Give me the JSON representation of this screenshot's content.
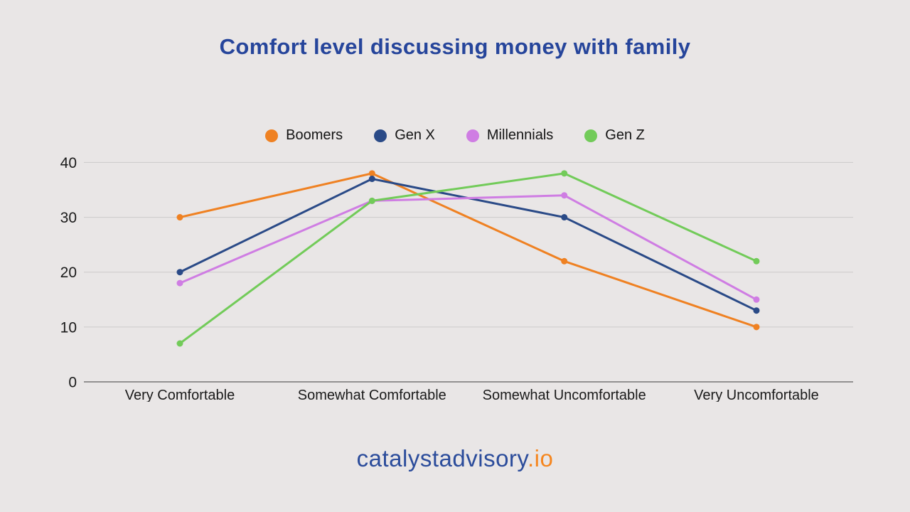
{
  "title": "Comfort level discussing money with family",
  "footer": {
    "brand": "catalystadvisory",
    "tld": ".io"
  },
  "colors": {
    "background": "#E9E6E6",
    "title": "#26459B",
    "gridline": "#CFCDCD",
    "axis_line": "#757575",
    "tick_label": "#1A1A1A",
    "category_label": "#1A1A1A",
    "legend_label": "#141414",
    "brand_blue": "#2B4C9B",
    "brand_orange": "#F5861F"
  },
  "chart_data": {
    "type": "line",
    "title": "Comfort level discussing money with family",
    "categories": [
      "Very Comfortable",
      "Somewhat Comfortable",
      "Somewhat Uncomfortable",
      "Very Uncomfortable"
    ],
    "series": [
      {
        "name": "Boomers",
        "color": "#EF8122",
        "values": [
          30,
          38,
          22,
          10
        ]
      },
      {
        "name": "Gen X",
        "color": "#2A4A87",
        "values": [
          20,
          37,
          30,
          13
        ]
      },
      {
        "name": "Millennials",
        "color": "#CF7DE3",
        "values": [
          18,
          33,
          34,
          15
        ]
      },
      {
        "name": "Gen Z",
        "color": "#72CB59",
        "values": [
          7,
          33,
          38,
          22
        ]
      }
    ],
    "yticks": [
      0,
      10,
      20,
      30,
      40
    ],
    "ylim": [
      0,
      43
    ],
    "xlabel": "",
    "ylabel": "",
    "grid": true,
    "legend_position": "top-center",
    "marker": "circle",
    "line_width": 3
  }
}
